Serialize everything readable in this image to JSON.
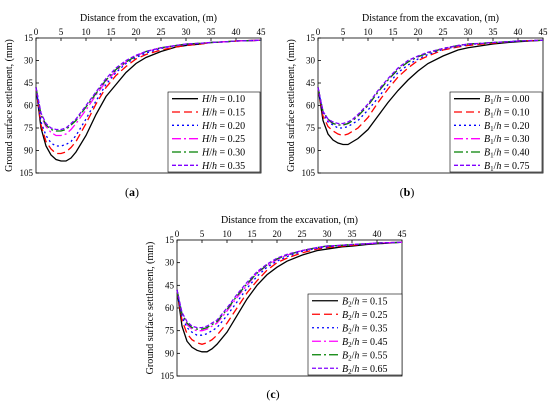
{
  "chart_data": [
    {
      "type": "line",
      "caption": "(a)",
      "title": "Distance from the excavation, (m)",
      "ylabel": "Ground surface settlement, (mm)",
      "xlim": [
        0,
        45
      ],
      "ylim": [
        15,
        105
      ],
      "x_ticks": [
        0,
        5,
        10,
        15,
        20,
        25,
        30,
        35,
        40,
        45
      ],
      "y_ticks": [
        15,
        30,
        45,
        60,
        75,
        90,
        105
      ],
      "y_inverted": true,
      "x_axis_position": "top",
      "grid": false,
      "legend_position": "right-middle",
      "x": [
        0,
        1,
        2,
        3,
        4,
        5,
        6,
        7,
        8,
        10,
        12,
        14,
        16,
        18,
        20,
        22,
        25,
        28,
        30,
        33,
        35,
        38,
        40,
        45
      ],
      "series": [
        {
          "name": "H/h = 0.10",
          "color": "#000000",
          "dash": "solid",
          "values": [
            48,
            75,
            87,
            93,
            96,
            97,
            97,
            95,
            91,
            80,
            66,
            54,
            46,
            38,
            32,
            28,
            24,
            21,
            20,
            19,
            18,
            17.5,
            17,
            16.5
          ]
        },
        {
          "name": "H/h = 0.15",
          "color": "#ff0000",
          "dash": "8 4",
          "values": [
            48,
            73,
            84,
            89,
            92,
            92,
            91,
            88,
            84,
            72,
            59,
            48,
            40,
            34,
            29,
            26,
            23,
            21,
            20,
            19,
            18,
            17.5,
            17,
            16.5
          ]
        },
        {
          "name": "H/h = 0.20",
          "color": "#0000ff",
          "dash": "2 3",
          "values": [
            48,
            71,
            80,
            85,
            87,
            87,
            86,
            84,
            80,
            69,
            57,
            46,
            38,
            32,
            28,
            25,
            22,
            20,
            19.5,
            18.5,
            18,
            17.5,
            17,
            16.5
          ]
        },
        {
          "name": "H/h = 0.25",
          "color": "#ff00ff",
          "dash": "9 3 2 3",
          "values": [
            48,
            67,
            74,
            78,
            80,
            80,
            79,
            76,
            72,
            63,
            53,
            44,
            37,
            31,
            27,
            24,
            21.5,
            20,
            19,
            18.5,
            18,
            17.5,
            17,
            16.5
          ]
        },
        {
          "name": "H/h = 0.30",
          "color": "#008000",
          "dash": "9 3 2 3",
          "values": [
            48,
            66,
            73,
            76,
            77,
            77,
            76,
            73,
            70,
            61,
            52,
            43,
            36,
            31,
            27,
            24,
            21.5,
            20,
            19,
            18.5,
            18,
            17.5,
            17,
            16.5
          ]
        },
        {
          "name": "H/h = 0.35",
          "color": "#8000ff",
          "dash": "4 2",
          "values": [
            48,
            65,
            72,
            75,
            76,
            76,
            75,
            72,
            69,
            60,
            51,
            42,
            35,
            30,
            26.5,
            24,
            21.5,
            20,
            19,
            18.5,
            18,
            17.5,
            17,
            16.5
          ]
        }
      ]
    },
    {
      "type": "line",
      "caption": "(b)",
      "title": "Distance from the excavation, (m)",
      "ylabel": "Ground surface settlement, (mm)",
      "xlim": [
        0,
        45
      ],
      "ylim": [
        15,
        105
      ],
      "x_ticks": [
        0,
        5,
        10,
        15,
        20,
        25,
        30,
        35,
        40,
        45
      ],
      "y_ticks": [
        15,
        30,
        45,
        60,
        75,
        90,
        105
      ],
      "y_inverted": true,
      "x_axis_position": "top",
      "grid": false,
      "legend_position": "right-middle",
      "x": [
        0,
        1,
        2,
        3,
        4,
        5,
        6,
        7,
        8,
        10,
        12,
        14,
        16,
        18,
        20,
        22,
        25,
        28,
        30,
        33,
        35,
        38,
        40,
        45
      ],
      "series": [
        {
          "name": "B1/h = 0.00",
          "color": "#000000",
          "dash": "solid",
          "values": [
            48,
            70,
            79,
            83,
            85,
            86,
            86,
            84,
            82,
            76,
            67,
            58,
            50,
            43,
            37,
            32,
            27,
            23,
            21.5,
            20,
            19,
            18,
            17.5,
            16.5
          ]
        },
        {
          "name": "B1/h = 0.10",
          "color": "#ff0000",
          "dash": "8 4",
          "values": [
            48,
            67,
            74,
            77,
            79,
            80,
            79,
            77,
            75,
            68,
            58,
            49,
            41,
            35,
            30,
            27,
            23,
            21,
            20,
            19,
            18.5,
            17.5,
            17,
            16.5
          ]
        },
        {
          "name": "B1/h = 0.20",
          "color": "#0000ff",
          "dash": "2 3",
          "values": [
            48,
            65,
            71,
            73,
            75,
            75,
            74,
            72,
            70,
            63,
            55,
            46,
            38,
            33,
            29,
            26,
            22.5,
            20.5,
            19.5,
            18.5,
            18,
            17.5,
            17,
            16.5
          ]
        },
        {
          "name": "B1/h = 0.30",
          "color": "#ff00ff",
          "dash": "9 3 2 3",
          "values": [
            48,
            64,
            70,
            72,
            73,
            73,
            72,
            70,
            67,
            60,
            51,
            43,
            36,
            31,
            27.5,
            25,
            22,
            20,
            19,
            18.5,
            18,
            17.5,
            17,
            16.5
          ]
        },
        {
          "name": "B1/h = 0.40",
          "color": "#008000",
          "dash": "9 3 2 3",
          "values": [
            48,
            64,
            69,
            72,
            73,
            73,
            72,
            70,
            67,
            60,
            51,
            43,
            36,
            31,
            27.5,
            25,
            22,
            20,
            19,
            18.5,
            18,
            17.5,
            17,
            16.5
          ]
        },
        {
          "name": "B1/h = 0.75",
          "color": "#8000ff",
          "dash": "4 2",
          "values": [
            48,
            64,
            69,
            71,
            72,
            72,
            71,
            69,
            66,
            59,
            50,
            42,
            35,
            30,
            27,
            24.5,
            22,
            20,
            19,
            18.5,
            18,
            17.5,
            17,
            16.5
          ]
        }
      ]
    },
    {
      "type": "line",
      "caption": "(c)",
      "title": "Distance from the excavation, (m)",
      "ylabel": "Ground surface settlement, (mm)",
      "xlim": [
        0,
        45
      ],
      "ylim": [
        15,
        105
      ],
      "x_ticks": [
        0,
        5,
        10,
        15,
        20,
        25,
        30,
        35,
        40,
        45
      ],
      "y_ticks": [
        15,
        30,
        45,
        60,
        75,
        90,
        105
      ],
      "y_inverted": true,
      "x_axis_position": "top",
      "grid": false,
      "legend_position": "right-middle",
      "x": [
        0,
        1,
        2,
        3,
        4,
        5,
        6,
        7,
        8,
        10,
        12,
        14,
        16,
        18,
        20,
        22,
        25,
        28,
        30,
        33,
        35,
        38,
        40,
        45
      ],
      "series": [
        {
          "name": "B2/h = 0.15",
          "color": "#000000",
          "dash": "solid",
          "values": [
            48,
            72,
            82,
            86,
            88,
            89,
            89,
            87,
            84,
            76,
            65,
            54,
            45,
            38,
            33,
            29,
            25,
            22,
            21,
            19.5,
            19,
            18,
            17.5,
            16.5
          ]
        },
        {
          "name": "B2/h = 0.25",
          "color": "#ff0000",
          "dash": "8 4",
          "values": [
            48,
            68,
            77,
            81,
            83,
            84,
            83,
            81,
            78,
            70,
            60,
            50,
            42,
            35,
            30,
            27,
            23.5,
            21,
            20,
            19,
            18.5,
            17.5,
            17,
            16.5
          ]
        },
        {
          "name": "B2/h = 0.35",
          "color": "#0000ff",
          "dash": "2 3",
          "values": [
            48,
            66,
            73,
            76,
            78,
            78,
            77,
            75,
            73,
            65,
            56,
            47,
            39,
            33,
            29,
            26,
            22.5,
            20.5,
            19.5,
            18.5,
            18,
            17.5,
            17,
            16.5
          ]
        },
        {
          "name": "B2/h = 0.45",
          "color": "#ff00ff",
          "dash": "9 3 2 3",
          "values": [
            48,
            64,
            71,
            74,
            75,
            75,
            74,
            72,
            70,
            62,
            53,
            45,
            37,
            32,
            28,
            25,
            22,
            20,
            19,
            18.5,
            18,
            17.5,
            17,
            16.5
          ]
        },
        {
          "name": "B2/h = 0.55",
          "color": "#008000",
          "dash": "9 3 2 3",
          "values": [
            48,
            64,
            70,
            73,
            74,
            74,
            73,
            71,
            69,
            61,
            52,
            44,
            37,
            31.5,
            27.5,
            25,
            22,
            20,
            19,
            18.5,
            18,
            17.5,
            17,
            16.5
          ]
        },
        {
          "name": "B2/h = 0.65",
          "color": "#8000ff",
          "dash": "4 2",
          "values": [
            48,
            63,
            69,
            72,
            73,
            73,
            72,
            70,
            68,
            60,
            51,
            43,
            36,
            31,
            27,
            24.5,
            22,
            20,
            19,
            18.5,
            18,
            17.5,
            17,
            16.5
          ]
        }
      ]
    }
  ]
}
